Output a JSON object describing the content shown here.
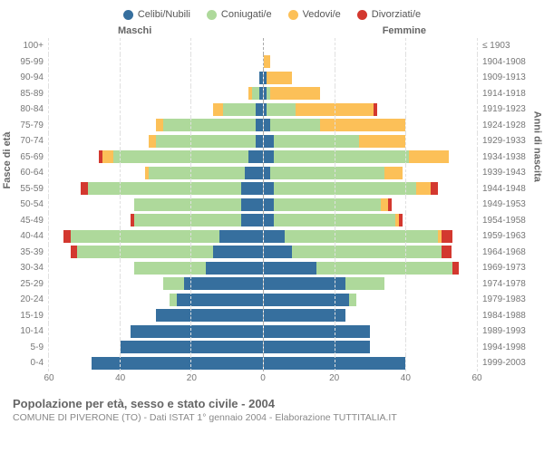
{
  "legend": [
    {
      "label": "Celibi/Nubili",
      "color": "#366f9e"
    },
    {
      "label": "Coniugati/e",
      "color": "#aed99b"
    },
    {
      "label": "Vedovi/e",
      "color": "#fcc058"
    },
    {
      "label": "Divorziati/e",
      "color": "#d3382f"
    }
  ],
  "side_labels": {
    "left": "Maschi",
    "right": "Femmine"
  },
  "axis_titles": {
    "left": "Fasce di età",
    "right": "Anni di nascita"
  },
  "xmax": 60,
  "xticks": [
    0,
    20,
    40,
    60
  ],
  "grid_color": "#e0e0e0",
  "center_line_color": "#aaaaaa",
  "background": "#ffffff",
  "rows": [
    {
      "age": "100+",
      "year": "≤ 1903",
      "m": [
        0,
        0,
        0,
        0
      ],
      "f": [
        0,
        0,
        0,
        0
      ]
    },
    {
      "age": "95-99",
      "year": "1904-1908",
      "m": [
        0,
        0,
        0,
        0
      ],
      "f": [
        0,
        0,
        2,
        0
      ]
    },
    {
      "age": "90-94",
      "year": "1909-1913",
      "m": [
        1,
        0,
        0,
        0
      ],
      "f": [
        1,
        0,
        7,
        0
      ]
    },
    {
      "age": "85-89",
      "year": "1914-1918",
      "m": [
        1,
        2,
        1,
        0
      ],
      "f": [
        1,
        1,
        14,
        0
      ]
    },
    {
      "age": "80-84",
      "year": "1919-1923",
      "m": [
        2,
        9,
        3,
        0
      ],
      "f": [
        1,
        8,
        22,
        1
      ]
    },
    {
      "age": "75-79",
      "year": "1924-1928",
      "m": [
        2,
        26,
        2,
        0
      ],
      "f": [
        2,
        14,
        24,
        0
      ]
    },
    {
      "age": "70-74",
      "year": "1929-1933",
      "m": [
        2,
        28,
        2,
        0
      ],
      "f": [
        3,
        24,
        13,
        0
      ]
    },
    {
      "age": "65-69",
      "year": "1934-1938",
      "m": [
        4,
        38,
        3,
        1
      ],
      "f": [
        3,
        38,
        11,
        0
      ]
    },
    {
      "age": "60-64",
      "year": "1939-1943",
      "m": [
        5,
        27,
        1,
        0
      ],
      "f": [
        2,
        32,
        5,
        0
      ]
    },
    {
      "age": "55-59",
      "year": "1944-1948",
      "m": [
        6,
        43,
        0,
        2
      ],
      "f": [
        3,
        40,
        4,
        2
      ]
    },
    {
      "age": "50-54",
      "year": "1949-1953",
      "m": [
        6,
        30,
        0,
        0
      ],
      "f": [
        3,
        30,
        2,
        1
      ]
    },
    {
      "age": "45-49",
      "year": "1954-1958",
      "m": [
        6,
        30,
        0,
        1
      ],
      "f": [
        3,
        34,
        1,
        1
      ]
    },
    {
      "age": "40-44",
      "year": "1959-1963",
      "m": [
        12,
        42,
        0,
        2
      ],
      "f": [
        6,
        43,
        1,
        3
      ]
    },
    {
      "age": "35-39",
      "year": "1964-1968",
      "m": [
        14,
        38,
        0,
        2
      ],
      "f": [
        8,
        42,
        0,
        3
      ]
    },
    {
      "age": "30-34",
      "year": "1969-1973",
      "m": [
        16,
        20,
        0,
        0
      ],
      "f": [
        15,
        38,
        0,
        2
      ]
    },
    {
      "age": "25-29",
      "year": "1974-1978",
      "m": [
        22,
        6,
        0,
        0
      ],
      "f": [
        23,
        11,
        0,
        0
      ]
    },
    {
      "age": "20-24",
      "year": "1979-1983",
      "m": [
        24,
        2,
        0,
        0
      ],
      "f": [
        24,
        2,
        0,
        0
      ]
    },
    {
      "age": "15-19",
      "year": "1984-1988",
      "m": [
        30,
        0,
        0,
        0
      ],
      "f": [
        23,
        0,
        0,
        0
      ]
    },
    {
      "age": "10-14",
      "year": "1989-1993",
      "m": [
        37,
        0,
        0,
        0
      ],
      "f": [
        30,
        0,
        0,
        0
      ]
    },
    {
      "age": "5-9",
      "year": "1994-1998",
      "m": [
        40,
        0,
        0,
        0
      ],
      "f": [
        30,
        0,
        0,
        0
      ]
    },
    {
      "age": "0-4",
      "year": "1999-2003",
      "m": [
        48,
        0,
        0,
        0
      ],
      "f": [
        40,
        0,
        0,
        0
      ]
    }
  ],
  "footer": {
    "title": "Popolazione per età, sesso e stato civile - 2004",
    "subtitle": "COMUNE DI PIVERONE (TO) - Dati ISTAT 1° gennaio 2004 - Elaborazione TUTTITALIA.IT"
  }
}
